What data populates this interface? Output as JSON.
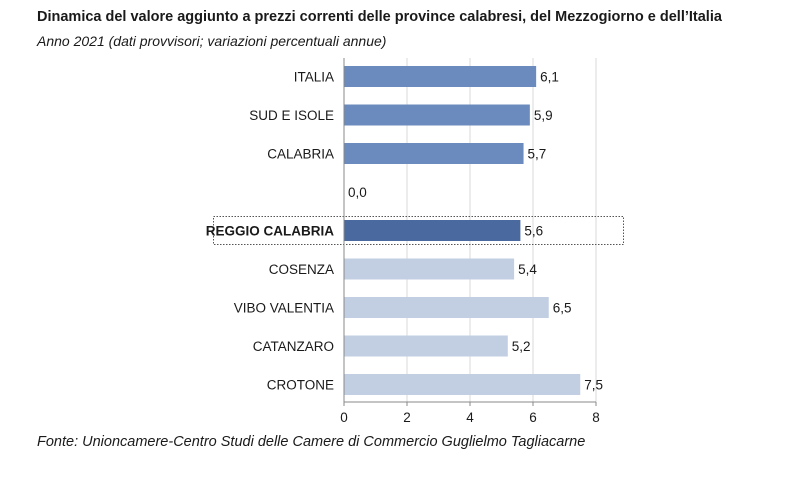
{
  "title": "Dinamica del valore aggiunto a prezzi correnti delle province calabresi, del Mezzogiorno e dell’Italia",
  "subtitle": "Anno 2021 (dati provvisori; variazioni percentuali annue)",
  "source": "Fonte: Unioncamere-Centro Studi delle Camere di Commercio Guglielmo Tagliacarne",
  "colors": {
    "aggregate": "#6b8bbe",
    "highlight": "#4a6a9f",
    "province": "#c2cfe2",
    "grid": "#d9d9d9",
    "axis": "#888888"
  },
  "chart_data": {
    "type": "bar",
    "orientation": "horizontal",
    "categories": [
      "ITALIA",
      "SUD E ISOLE",
      "CALABRIA",
      "",
      "REGGIO CALABRIA",
      "COSENZA",
      "VIBO VALENTIA",
      "CATANZARO",
      "CROTONE"
    ],
    "values": [
      6.1,
      5.9,
      5.7,
      0.0,
      5.6,
      5.4,
      6.5,
      5.2,
      7.5
    ],
    "value_labels": [
      "6,1",
      "5,9",
      "5,7",
      "0,0",
      "5,6",
      "5,4",
      "6,5",
      "5,2",
      "7,5"
    ],
    "groups": [
      "aggregate",
      "aggregate",
      "aggregate",
      "aggregate",
      "highlight",
      "province",
      "province",
      "province",
      "province"
    ],
    "highlighted_category": "REGGIO CALABRIA",
    "xlim": [
      0,
      8
    ],
    "xticks": [
      0,
      2,
      4,
      6,
      8
    ],
    "xlabel": "",
    "ylabel": "",
    "grid": true
  }
}
